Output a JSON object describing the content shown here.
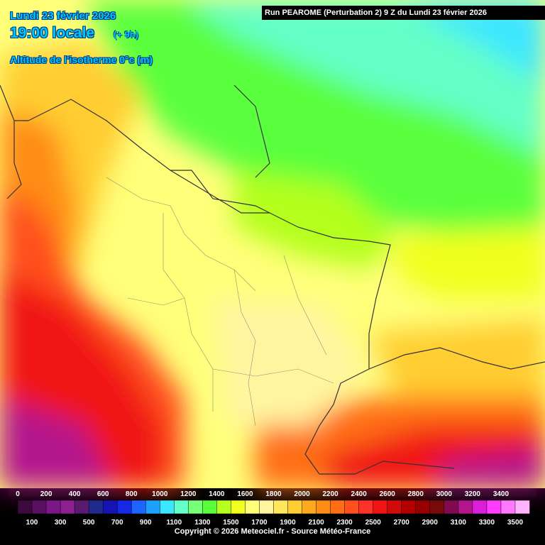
{
  "header": {
    "date": "Lundi 23 février 2026",
    "hour": "19:00 locale",
    "offset": "(+ 9h)",
    "parameter": "Altitude de l'isotherme 0°c (m)"
  },
  "run_banner": "Run PEAROME (Perturbation 2) 9 Z du Lundi 23 février 2026",
  "legend": {
    "top_labels": [
      "0",
      "200",
      "400",
      "600",
      "800",
      "1000",
      "1200",
      "1400",
      "1600",
      "1800",
      "2000",
      "2200",
      "2400",
      "2600",
      "2800",
      "3000",
      "3200",
      "3400"
    ],
    "bottom_labels": [
      "100",
      "300",
      "500",
      "700",
      "900",
      "1100",
      "1300",
      "1500",
      "1700",
      "1900",
      "2100",
      "2300",
      "2500",
      "2700",
      "2900",
      "3100",
      "3300",
      "3500"
    ],
    "colors": [
      "#3c0a3c",
      "#5a1060",
      "#7a1888",
      "#8c2090",
      "#5a1a6e",
      "#1e2a8c",
      "#1414b4",
      "#1428e6",
      "#1e64ff",
      "#1ea0ff",
      "#3ce6ff",
      "#64ffc8",
      "#78ff78",
      "#5aff3c",
      "#b4ff1e",
      "#f0ff1e",
      "#ffff7a",
      "#fff5a0",
      "#ffe65a",
      "#ffcd32",
      "#ffaa1e",
      "#ff8c14",
      "#ff6e14",
      "#ff501e",
      "#ff3228",
      "#f01414",
      "#d20a0a",
      "#b40000",
      "#960000",
      "#780a0a",
      "#820a50",
      "#b4148c",
      "#dc1edc",
      "#ff3cff",
      "#ff78ff",
      "#ffb4ff"
    ]
  },
  "copyright": "Copyright © 2026 Meteociel.fr - Source Météo-France"
}
